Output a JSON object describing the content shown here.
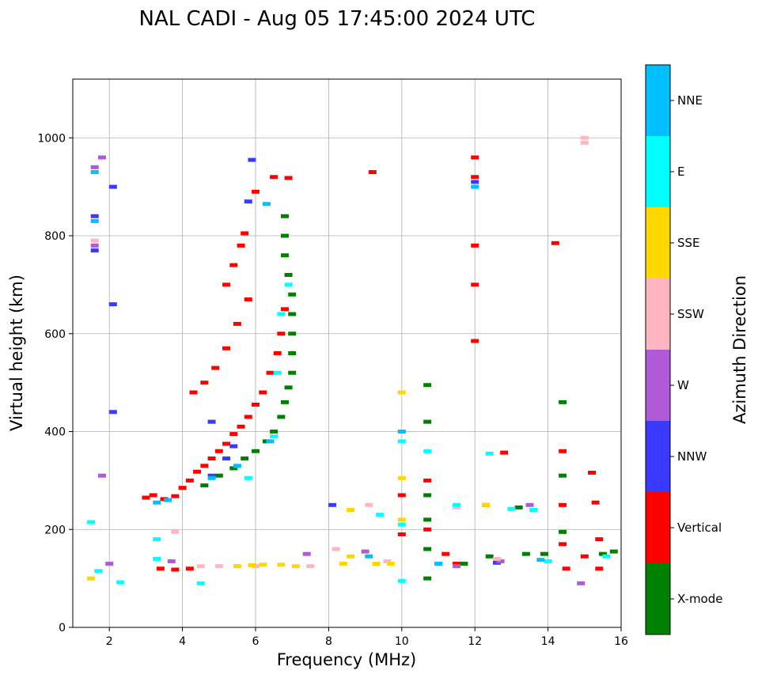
{
  "chart_data": {
    "type": "scatter",
    "title": "NAL CADI - Aug 05 17:45:00 2024 UTC",
    "xlabel": "Frequency (MHz)",
    "ylabel": "Virtual height (km)",
    "xlim": [
      1,
      16
    ],
    "ylim": [
      0,
      1120
    ],
    "xticks": [
      2,
      4,
      6,
      8,
      10,
      12,
      14,
      16
    ],
    "yticks": [
      0,
      200,
      400,
      600,
      800,
      1000
    ],
    "grid": true,
    "colorbar": {
      "label": "Azimuth Direction",
      "categories": [
        {
          "name": "X-mode",
          "color": "#008000"
        },
        {
          "name": "Vertical",
          "color": "#ff0000"
        },
        {
          "name": "NNW",
          "color": "#3a3aff"
        },
        {
          "name": "W",
          "color": "#b05ad8"
        },
        {
          "name": "SSW",
          "color": "#ffb6c1"
        },
        {
          "name": "SSE",
          "color": "#ffd700"
        },
        {
          "name": "E",
          "color": "#00ffff"
        },
        {
          "name": "NNE",
          "color": "#00bfff"
        }
      ]
    },
    "series": [
      {
        "name": "Vertical",
        "color": "#ff0000",
        "points": [
          [
            3.0,
            265
          ],
          [
            3.2,
            270
          ],
          [
            3.5,
            262
          ],
          [
            3.8,
            268
          ],
          [
            4.0,
            285
          ],
          [
            4.2,
            300
          ],
          [
            4.4,
            318
          ],
          [
            4.6,
            330
          ],
          [
            4.8,
            345
          ],
          [
            5.0,
            360
          ],
          [
            5.2,
            375
          ],
          [
            5.4,
            395
          ],
          [
            5.6,
            410
          ],
          [
            5.8,
            430
          ],
          [
            6.0,
            455
          ],
          [
            6.2,
            480
          ],
          [
            6.4,
            520
          ],
          [
            6.6,
            560
          ],
          [
            6.7,
            600
          ],
          [
            6.8,
            650
          ],
          [
            4.3,
            480
          ],
          [
            4.6,
            500
          ],
          [
            4.9,
            530
          ],
          [
            5.2,
            570
          ],
          [
            5.5,
            620
          ],
          [
            5.8,
            670
          ],
          [
            5.2,
            700
          ],
          [
            5.4,
            740
          ],
          [
            5.6,
            780
          ],
          [
            5.7,
            805
          ],
          [
            3.4,
            120
          ],
          [
            3.8,
            118
          ],
          [
            4.2,
            120
          ],
          [
            6.5,
            920
          ],
          [
            6.9,
            918
          ],
          [
            10.0,
            270
          ],
          [
            10.0,
            190
          ],
          [
            10.7,
            300
          ],
          [
            10.7,
            200
          ],
          [
            11.2,
            150
          ],
          [
            11.5,
            130
          ],
          [
            12.0,
            960
          ],
          [
            12.0,
            920
          ],
          [
            12.0,
            780
          ],
          [
            12.0,
            700
          ],
          [
            12.0,
            585
          ],
          [
            12.3,
            250
          ],
          [
            12.8,
            357
          ],
          [
            14.2,
            785
          ],
          [
            14.4,
            360
          ],
          [
            14.4,
            250
          ],
          [
            14.4,
            170
          ],
          [
            14.5,
            120
          ],
          [
            15.2,
            316
          ],
          [
            15.3,
            255
          ],
          [
            15.4,
            180
          ],
          [
            15.4,
            120
          ],
          [
            15.0,
            145
          ],
          [
            9.2,
            930
          ],
          [
            6.0,
            890
          ]
        ]
      },
      {
        "name": "X-mode",
        "color": "#008000",
        "points": [
          [
            4.6,
            290
          ],
          [
            5.0,
            310
          ],
          [
            5.4,
            325
          ],
          [
            5.7,
            345
          ],
          [
            6.0,
            360
          ],
          [
            6.3,
            380
          ],
          [
            6.5,
            400
          ],
          [
            6.7,
            430
          ],
          [
            6.8,
            460
          ],
          [
            6.9,
            490
          ],
          [
            7.0,
            520
          ],
          [
            7.0,
            560
          ],
          [
            7.0,
            600
          ],
          [
            7.0,
            640
          ],
          [
            7.0,
            680
          ],
          [
            6.9,
            720
          ],
          [
            6.8,
            760
          ],
          [
            6.8,
            800
          ],
          [
            6.8,
            840
          ],
          [
            10.7,
            495
          ],
          [
            10.7,
            420
          ],
          [
            10.7,
            270
          ],
          [
            10.7,
            220
          ],
          [
            10.7,
            160
          ],
          [
            10.7,
            100
          ],
          [
            11.7,
            130
          ],
          [
            13.4,
            150
          ],
          [
            13.2,
            245
          ],
          [
            14.4,
            460
          ],
          [
            14.4,
            310
          ],
          [
            14.4,
            195
          ],
          [
            15.5,
            150
          ],
          [
            15.8,
            155
          ],
          [
            12.4,
            145
          ],
          [
            13.9,
            150
          ]
        ]
      },
      {
        "name": "NNW",
        "color": "#3a3aff",
        "points": [
          [
            4.8,
            310
          ],
          [
            5.2,
            345
          ],
          [
            5.4,
            370
          ],
          [
            5.8,
            870
          ],
          [
            5.9,
            955
          ],
          [
            2.1,
            900
          ],
          [
            2.1,
            660
          ],
          [
            2.1,
            440
          ],
          [
            1.6,
            840
          ],
          [
            1.6,
            770
          ],
          [
            8.1,
            250
          ],
          [
            12.0,
            910
          ],
          [
            12.6,
            132
          ],
          [
            4.8,
            420
          ]
        ]
      },
      {
        "name": "W",
        "color": "#b05ad8",
        "points": [
          [
            1.6,
            780
          ],
          [
            1.6,
            940
          ],
          [
            1.8,
            960
          ],
          [
            2.0,
            130
          ],
          [
            9.0,
            155
          ],
          [
            11.5,
            125
          ],
          [
            12.7,
            135
          ],
          [
            13.5,
            250
          ],
          [
            14.9,
            90
          ],
          [
            7.4,
            150
          ],
          [
            3.7,
            135
          ],
          [
            1.8,
            310
          ]
        ]
      },
      {
        "name": "SSW",
        "color": "#ffb6c1",
        "points": [
          [
            4.5,
            125
          ],
          [
            5.0,
            125
          ],
          [
            6.0,
            125
          ],
          [
            7.5,
            125
          ],
          [
            9.1,
            250
          ],
          [
            9.6,
            135
          ],
          [
            11.5,
            245
          ],
          [
            12.6,
            140
          ],
          [
            15.0,
            1000
          ],
          [
            15.0,
            990
          ],
          [
            3.8,
            195
          ],
          [
            8.2,
            160
          ],
          [
            1.6,
            790
          ]
        ]
      },
      {
        "name": "SSE",
        "color": "#ffd700",
        "points": [
          [
            1.5,
            100
          ],
          [
            5.5,
            125
          ],
          [
            5.9,
            127
          ],
          [
            6.2,
            128
          ],
          [
            6.7,
            128
          ],
          [
            7.1,
            125
          ],
          [
            8.4,
            130
          ],
          [
            8.6,
            145
          ],
          [
            9.3,
            130
          ],
          [
            9.7,
            130
          ],
          [
            10.0,
            480
          ],
          [
            10.0,
            305
          ],
          [
            10.0,
            220
          ],
          [
            12.3,
            250
          ],
          [
            8.6,
            240
          ]
        ]
      },
      {
        "name": "E",
        "color": "#00ffff",
        "points": [
          [
            1.7,
            115
          ],
          [
            2.3,
            92
          ],
          [
            3.3,
            140
          ],
          [
            3.3,
            180
          ],
          [
            4.5,
            90
          ],
          [
            5.8,
            305
          ],
          [
            6.5,
            390
          ],
          [
            6.6,
            520
          ],
          [
            6.7,
            640
          ],
          [
            6.9,
            700
          ],
          [
            10.0,
            380
          ],
          [
            10.0,
            210
          ],
          [
            10.0,
            95
          ],
          [
            10.7,
            360
          ],
          [
            11.5,
            250
          ],
          [
            12.4,
            355
          ],
          [
            13.0,
            242
          ],
          [
            13.6,
            240
          ],
          [
            14.0,
            135
          ],
          [
            15.6,
            145
          ],
          [
            9.4,
            230
          ],
          [
            1.5,
            215
          ]
        ]
      },
      {
        "name": "NNE",
        "color": "#00bfff",
        "points": [
          [
            3.3,
            255
          ],
          [
            3.6,
            260
          ],
          [
            4.8,
            305
          ],
          [
            5.5,
            330
          ],
          [
            6.4,
            380
          ],
          [
            9.1,
            145
          ],
          [
            10.0,
            400
          ],
          [
            12.0,
            900
          ],
          [
            13.8,
            138
          ],
          [
            11.0,
            130
          ],
          [
            1.6,
            930
          ],
          [
            1.6,
            830
          ],
          [
            6.3,
            865
          ]
        ]
      }
    ]
  }
}
